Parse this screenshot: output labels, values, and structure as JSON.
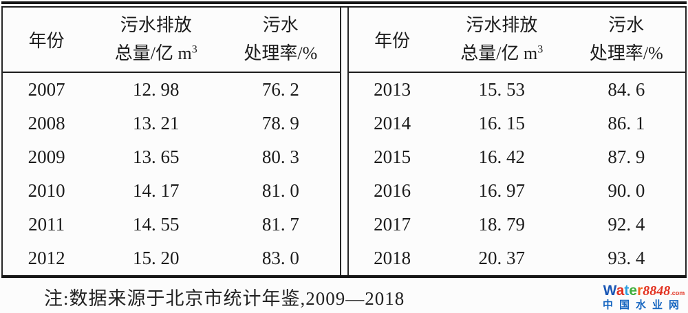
{
  "table": {
    "header": {
      "year_label": "年份",
      "discharge_label_line1": "污水排放",
      "discharge_label_line2": "总量/亿 m",
      "discharge_unit_superscript": "3",
      "rate_label_line1": "污水",
      "rate_label_line2": "处理率/%"
    },
    "left_rows": [
      {
        "year": "2007",
        "discharge": "12. 98",
        "rate": "76. 2"
      },
      {
        "year": "2008",
        "discharge": "13. 21",
        "rate": "78. 9"
      },
      {
        "year": "2009",
        "discharge": "13. 65",
        "rate": "80. 3"
      },
      {
        "year": "2010",
        "discharge": "14. 17",
        "rate": "81. 0"
      },
      {
        "year": "2011",
        "discharge": "14. 55",
        "rate": "81. 7"
      },
      {
        "year": "2012",
        "discharge": "15. 20",
        "rate": "83. 0"
      }
    ],
    "right_rows": [
      {
        "year": "2013",
        "discharge": "15. 53",
        "rate": "84. 6"
      },
      {
        "year": "2014",
        "discharge": "16. 15",
        "rate": "86. 1"
      },
      {
        "year": "2015",
        "discharge": "16. 42",
        "rate": "87. 9"
      },
      {
        "year": "2016",
        "discharge": "16. 97",
        "rate": "90. 0"
      },
      {
        "year": "2017",
        "discharge": "18. 79",
        "rate": "92. 4"
      },
      {
        "year": "2018",
        "discharge": "20. 37",
        "rate": "93. 4"
      }
    ]
  },
  "note": "注:数据来源于北京市统计年鉴,2009—2018",
  "watermark": {
    "brand_letters": [
      {
        "char": "W",
        "color": "#1b57b5"
      },
      {
        "char": "a",
        "color": "#e2301f"
      },
      {
        "char": "t",
        "color": "#2b9fe0"
      },
      {
        "char": "e",
        "color": "#3faf3c"
      },
      {
        "char": "r",
        "color": "#f2641c"
      }
    ],
    "brand_number": "8848",
    "brand_number_color": "#e2301f",
    "brand_suffix": ".com",
    "brand_suffix_color": "#e2301f",
    "site_name": "中国水业网",
    "site_name_color": "#1565c0"
  }
}
